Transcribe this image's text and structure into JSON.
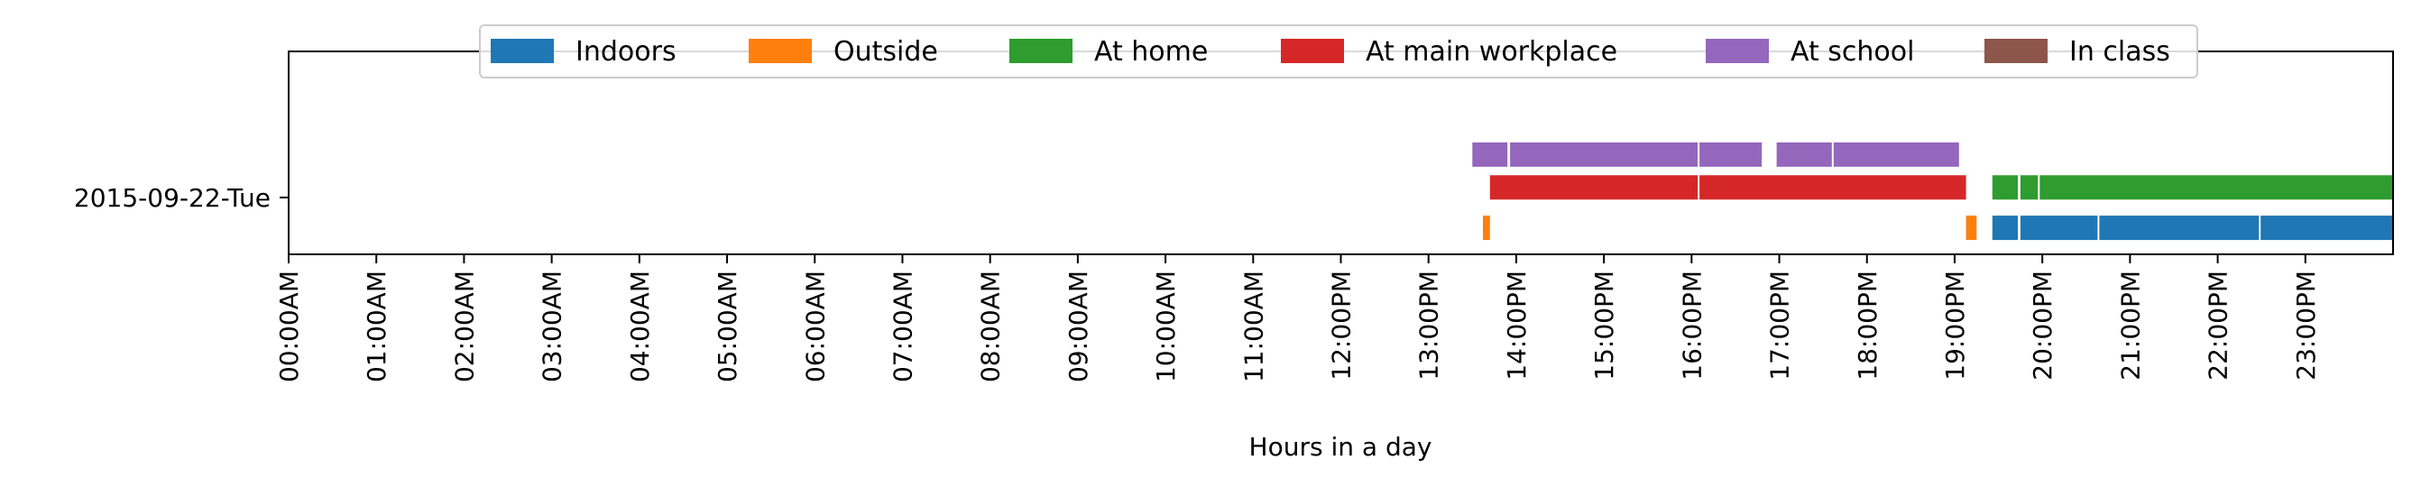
{
  "chart_data": {
    "type": "timeline",
    "xlabel": "Hours in a day",
    "xlim": [
      0,
      24
    ],
    "x_ticks": [
      {
        "value": 0,
        "label": "00:00AM"
      },
      {
        "value": 1,
        "label": "01:00AM"
      },
      {
        "value": 2,
        "label": "02:00AM"
      },
      {
        "value": 3,
        "label": "03:00AM"
      },
      {
        "value": 4,
        "label": "04:00AM"
      },
      {
        "value": 5,
        "label": "05:00AM"
      },
      {
        "value": 6,
        "label": "06:00AM"
      },
      {
        "value": 7,
        "label": "07:00AM"
      },
      {
        "value": 8,
        "label": "08:00AM"
      },
      {
        "value": 9,
        "label": "09:00AM"
      },
      {
        "value": 10,
        "label": "10:00AM"
      },
      {
        "value": 11,
        "label": "11:00AM"
      },
      {
        "value": 12,
        "label": "12:00PM"
      },
      {
        "value": 13,
        "label": "13:00PM"
      },
      {
        "value": 14,
        "label": "14:00PM"
      },
      {
        "value": 15,
        "label": "15:00PM"
      },
      {
        "value": 16,
        "label": "16:00PM"
      },
      {
        "value": 17,
        "label": "17:00PM"
      },
      {
        "value": 18,
        "label": "18:00PM"
      },
      {
        "value": 19,
        "label": "19:00PM"
      },
      {
        "value": 20,
        "label": "20:00PM"
      },
      {
        "value": 21,
        "label": "21:00PM"
      },
      {
        "value": 22,
        "label": "22:00PM"
      },
      {
        "value": 23,
        "label": "23:00PM"
      }
    ],
    "y_categories": [
      "2015-09-22-Tue"
    ],
    "legend_position": "top-center",
    "series": [
      {
        "name": "Indoors",
        "color": "#1f77b4",
        "offset": -0.12,
        "segments": [
          [
            19.43,
            19.72
          ],
          [
            19.75,
            20.63
          ],
          [
            20.65,
            22.47
          ],
          [
            22.49,
            23.99
          ]
        ]
      },
      {
        "name": "Outside",
        "color": "#ff7f0e",
        "offset": -0.12,
        "segments": [
          [
            13.62,
            13.7
          ],
          [
            19.13,
            19.25
          ]
        ]
      },
      {
        "name": "At home",
        "color": "#2e9c2e",
        "offset": 0.04,
        "segments": [
          [
            19.43,
            19.72
          ],
          [
            19.75,
            19.95
          ],
          [
            19.97,
            23.99
          ]
        ]
      },
      {
        "name": "At main workplace",
        "color": "#d62728",
        "offset": 0.04,
        "segments": [
          [
            13.7,
            16.07
          ],
          [
            16.09,
            19.13
          ]
        ]
      },
      {
        "name": "At school",
        "color": "#9467bd",
        "offset": 0.17,
        "segments": [
          [
            13.5,
            13.9
          ],
          [
            13.93,
            16.07
          ],
          [
            16.09,
            16.8
          ],
          [
            16.97,
            17.6
          ],
          [
            17.62,
            19.05
          ]
        ]
      },
      {
        "name": "In class",
        "color": "#8c564b",
        "offset": 0.17,
        "segments": []
      }
    ]
  }
}
